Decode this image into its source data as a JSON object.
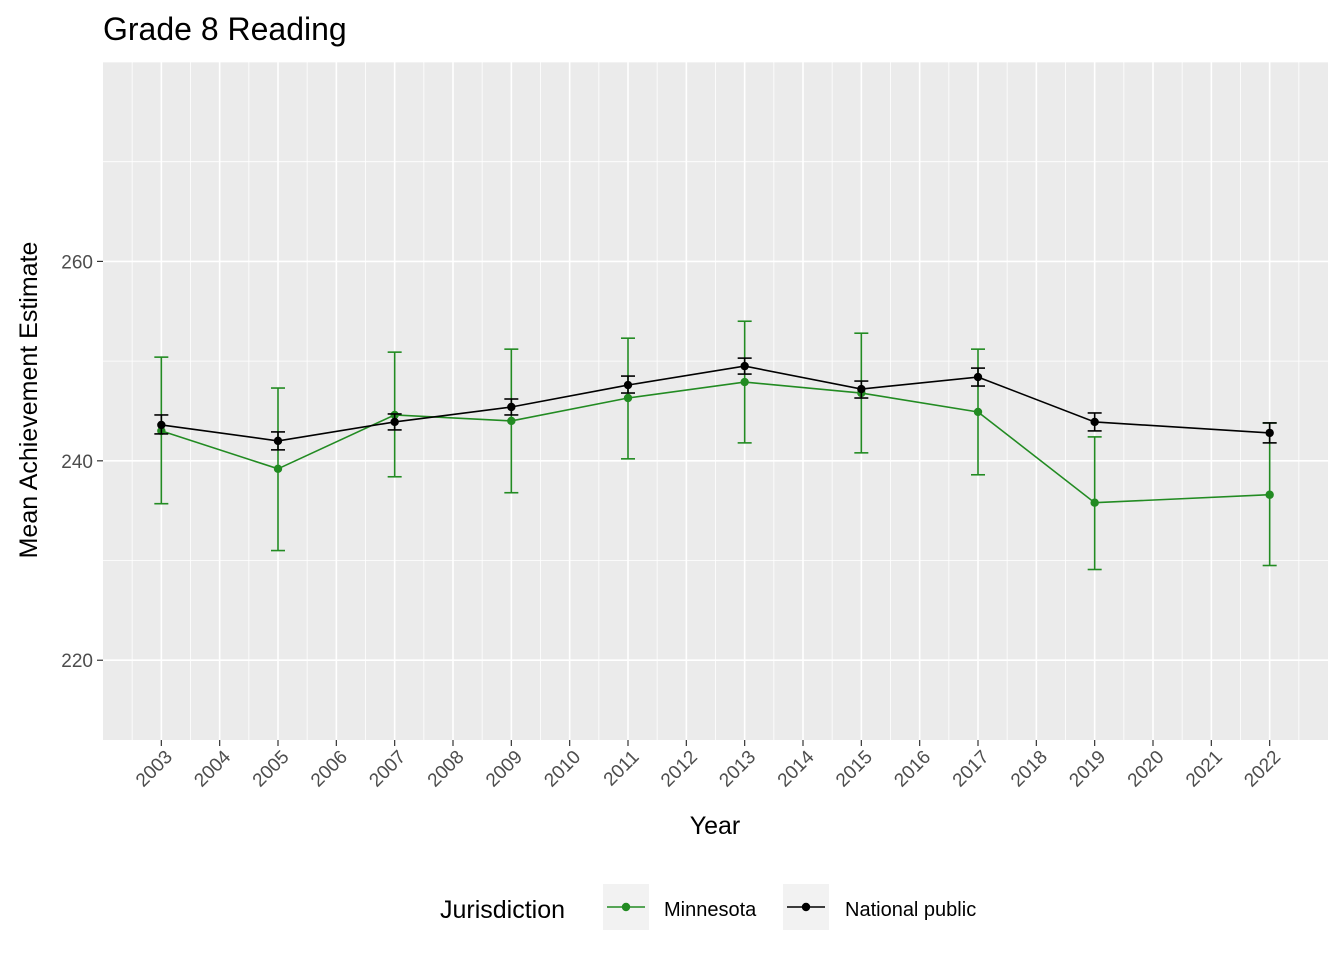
{
  "chart_data": {
    "type": "line",
    "title": "Grade 8 Reading",
    "xlabel": "Year",
    "ylabel": "Mean Achievement Estimate",
    "x_ticks": [
      2003,
      2004,
      2005,
      2006,
      2007,
      2008,
      2009,
      2010,
      2011,
      2012,
      2013,
      2014,
      2015,
      2016,
      2017,
      2018,
      2019,
      2020,
      2021,
      2022
    ],
    "y_ticks": [
      220,
      240,
      260
    ],
    "xlim": [
      2002,
      2023
    ],
    "ylim": [
      212,
      280
    ],
    "grid": true,
    "legend": {
      "title": "Jurisdiction",
      "position": "bottom"
    },
    "series": [
      {
        "name": "Minnesota",
        "color": "#228B22",
        "points": [
          {
            "x": 2003,
            "y": 243.0,
            "low": 235.7,
            "high": 250.4
          },
          {
            "x": 2005,
            "y": 239.2,
            "low": 231.0,
            "high": 247.3
          },
          {
            "x": 2007,
            "y": 244.6,
            "low": 238.4,
            "high": 250.9
          },
          {
            "x": 2009,
            "y": 244.0,
            "low": 236.8,
            "high": 251.2
          },
          {
            "x": 2011,
            "y": 246.3,
            "low": 240.2,
            "high": 252.3
          },
          {
            "x": 2013,
            "y": 247.9,
            "low": 241.8,
            "high": 254.0
          },
          {
            "x": 2015,
            "y": 246.8,
            "low": 240.8,
            "high": 252.8
          },
          {
            "x": 2017,
            "y": 244.9,
            "low": 238.6,
            "high": 251.2
          },
          {
            "x": 2019,
            "y": 235.8,
            "low": 229.1,
            "high": 242.4
          },
          {
            "x": 2022,
            "y": 236.6,
            "low": 229.5,
            "high": 243.8
          }
        ]
      },
      {
        "name": "National public",
        "color": "#000000",
        "points": [
          {
            "x": 2003,
            "y": 243.6,
            "low": 242.7,
            "high": 244.6
          },
          {
            "x": 2005,
            "y": 242.0,
            "low": 241.1,
            "high": 242.9
          },
          {
            "x": 2007,
            "y": 243.9,
            "low": 243.1,
            "high": 244.7
          },
          {
            "x": 2009,
            "y": 245.4,
            "low": 244.6,
            "high": 246.2
          },
          {
            "x": 2011,
            "y": 247.6,
            "low": 246.8,
            "high": 248.5
          },
          {
            "x": 2013,
            "y": 249.5,
            "low": 248.7,
            "high": 250.3
          },
          {
            "x": 2015,
            "y": 247.2,
            "low": 246.3,
            "high": 248.0
          },
          {
            "x": 2017,
            "y": 248.4,
            "low": 247.5,
            "high": 249.3
          },
          {
            "x": 2019,
            "y": 243.9,
            "low": 243.0,
            "high": 244.8
          },
          {
            "x": 2022,
            "y": 242.8,
            "low": 241.8,
            "high": 243.8
          }
        ]
      }
    ]
  }
}
